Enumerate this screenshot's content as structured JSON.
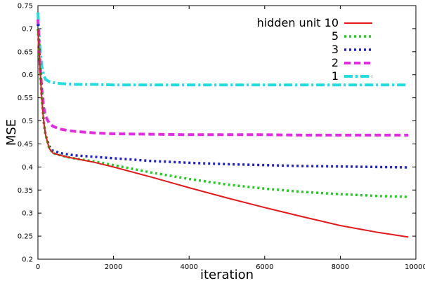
{
  "chart_data": {
    "type": "line",
    "title": "",
    "xlabel": "iteration",
    "ylabel": "MSE",
    "xlim": [
      0,
      10000
    ],
    "ylim": [
      0.2,
      0.75
    ],
    "x_ticks": [
      0,
      2000,
      4000,
      6000,
      8000,
      10000
    ],
    "y_ticks": [
      0.2,
      0.25,
      0.3,
      0.35,
      0.4,
      0.45,
      0.5,
      0.55,
      0.6,
      0.65,
      0.7,
      0.75
    ],
    "x_tick_labels": [
      "0",
      "2000",
      "4000",
      "6000",
      "8000",
      "10000"
    ],
    "y_tick_labels": [
      "0.2",
      "0.25",
      "0.3",
      "0.35",
      "0.4",
      "0.45",
      "0.5",
      "0.55",
      "0.6",
      "0.65",
      "0.7",
      "0.75"
    ],
    "legend_position": "top-right",
    "grid": false,
    "series": [
      {
        "name": "hidden unit 10",
        "color": "#e31a1c",
        "dash": "solid",
        "x": [
          0,
          50,
          100,
          150,
          200,
          300,
          400,
          600,
          800,
          1000,
          1500,
          2000,
          3000,
          4000,
          5000,
          6000,
          7000,
          8000,
          9000,
          9800
        ],
        "y": [
          0.7,
          0.62,
          0.55,
          0.5,
          0.47,
          0.44,
          0.43,
          0.425,
          0.421,
          0.418,
          0.41,
          0.4,
          0.378,
          0.355,
          0.333,
          0.312,
          0.292,
          0.273,
          0.258,
          0.248
        ]
      },
      {
        "name": "5",
        "color": "#22cc22",
        "dash": "dotted",
        "x": [
          0,
          50,
          100,
          150,
          200,
          300,
          400,
          600,
          800,
          1000,
          1500,
          2000,
          3000,
          4000,
          5000,
          6000,
          7000,
          8000,
          9000,
          9800
        ],
        "y": [
          0.7,
          0.62,
          0.55,
          0.5,
          0.47,
          0.44,
          0.43,
          0.425,
          0.421,
          0.418,
          0.412,
          0.404,
          0.388,
          0.374,
          0.362,
          0.353,
          0.346,
          0.341,
          0.337,
          0.335
        ]
      },
      {
        "name": "3",
        "color": "#1f1fd6",
        "dash": "dotted",
        "x": [
          0,
          50,
          100,
          150,
          200,
          300,
          400,
          600,
          800,
          1000,
          1500,
          2000,
          3000,
          4000,
          5000,
          6000,
          7000,
          8000,
          9000,
          9800
        ],
        "y": [
          0.71,
          0.63,
          0.56,
          0.5,
          0.47,
          0.445,
          0.435,
          0.43,
          0.427,
          0.425,
          0.422,
          0.419,
          0.413,
          0.409,
          0.406,
          0.404,
          0.402,
          0.401,
          0.4,
          0.399
        ]
      },
      {
        "name": "2",
        "color": "#e42be4",
        "dash": "dashed",
        "x": [
          0,
          50,
          100,
          150,
          200,
          300,
          400,
          600,
          800,
          1000,
          1500,
          2000,
          3000,
          4000,
          5000,
          6000,
          7000,
          8000,
          9000,
          9800
        ],
        "y": [
          0.72,
          0.63,
          0.57,
          0.53,
          0.51,
          0.495,
          0.488,
          0.482,
          0.479,
          0.477,
          0.474,
          0.472,
          0.471,
          0.47,
          0.47,
          0.47,
          0.469,
          0.469,
          0.469,
          0.469
        ]
      },
      {
        "name": "1",
        "color": "#22dddd",
        "dash": "dashdot",
        "x": [
          0,
          50,
          100,
          150,
          200,
          300,
          400,
          600,
          800,
          1000,
          1500,
          2000,
          3000,
          4000,
          5000,
          6000,
          7000,
          8000,
          9000,
          9800
        ],
        "y": [
          0.735,
          0.66,
          0.62,
          0.6,
          0.59,
          0.585,
          0.583,
          0.581,
          0.58,
          0.579,
          0.579,
          0.578,
          0.578,
          0.578,
          0.578,
          0.578,
          0.578,
          0.578,
          0.578,
          0.578
        ]
      }
    ]
  }
}
